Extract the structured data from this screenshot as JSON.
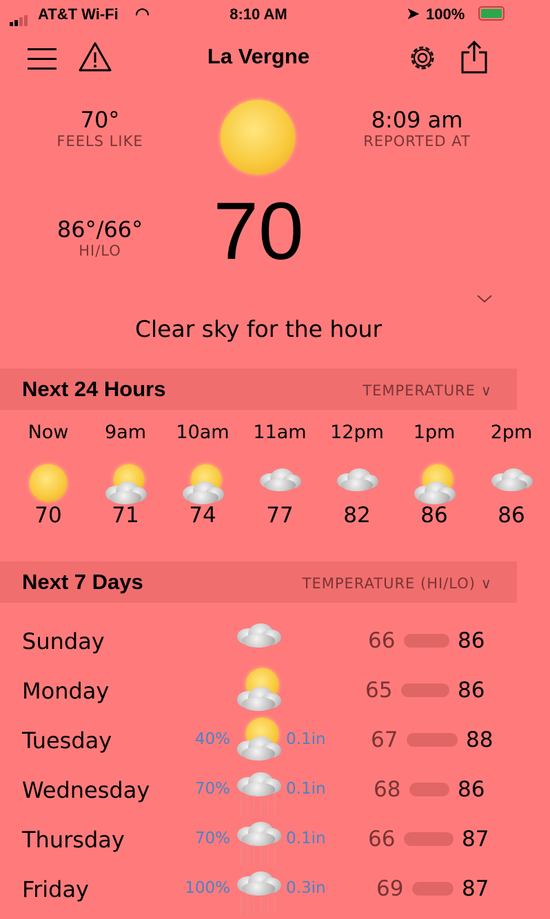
{
  "status": {
    "carrier": "AT&T Wi-Fi",
    "time": "8:10 AM",
    "battery": "100%"
  },
  "header": {
    "title": "La Vergne"
  },
  "current": {
    "feels_like": "70°",
    "feels_like_label": "FEELS LIKE",
    "reported": "8:09 am",
    "reported_label": "REPORTED AT",
    "hilo": "86°/66°",
    "hilo_label": "HI/LO",
    "temp": "70",
    "summary": "Clear sky for the hour",
    "icon": "sun-icon"
  },
  "hourly": {
    "title": "Next 24 Hours",
    "selector": "TEMPERATURE",
    "items": [
      {
        "time": "Now",
        "temp": "70",
        "icon": "sun"
      },
      {
        "time": "9am",
        "temp": "71",
        "icon": "partly-cloudy"
      },
      {
        "time": "10am",
        "temp": "74",
        "icon": "partly-cloudy"
      },
      {
        "time": "11am",
        "temp": "77",
        "icon": "cloudy"
      },
      {
        "time": "12pm",
        "temp": "82",
        "icon": "cloudy"
      },
      {
        "time": "1pm",
        "temp": "86",
        "icon": "partly-cloudy"
      },
      {
        "time": "2pm",
        "temp": "86",
        "icon": "cloudy"
      }
    ]
  },
  "daily": {
    "title": "Next 7 Days",
    "selector": "TEMPERATURE (HI/LO)",
    "items": [
      {
        "day": "Sunday",
        "precip_chance": "",
        "precip_amount": "",
        "lo": "66",
        "hi": "86",
        "icon": "cloudy"
      },
      {
        "day": "Monday",
        "precip_chance": "",
        "precip_amount": "",
        "lo": "65",
        "hi": "86",
        "icon": "partly-cloudy"
      },
      {
        "day": "Tuesday",
        "precip_chance": "40%",
        "precip_amount": "0.1in",
        "lo": "67",
        "hi": "88",
        "icon": "partly-cloudy"
      },
      {
        "day": "Wednesday",
        "precip_chance": "70%",
        "precip_amount": "0.1in",
        "lo": "68",
        "hi": "86",
        "icon": "rain"
      },
      {
        "day": "Thursday",
        "precip_chance": "70%",
        "precip_amount": "0.1in",
        "lo": "66",
        "hi": "87",
        "icon": "rain"
      },
      {
        "day": "Friday",
        "precip_chance": "100%",
        "precip_amount": "0.3in",
        "lo": "69",
        "hi": "87",
        "icon": "rain"
      }
    ]
  },
  "colors": {
    "background": "#FF7B7B",
    "section": "#F06E6E",
    "precip": "#4A82C8",
    "low": "#7A3434",
    "bar": "#E06666"
  }
}
